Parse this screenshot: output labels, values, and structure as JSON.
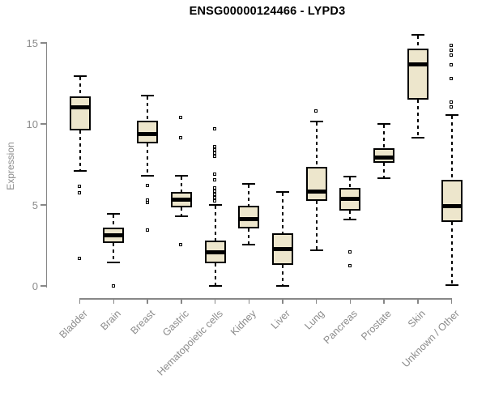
{
  "title": "ENSG00000124466 - LYPD3",
  "colors": {
    "background": "#ffffff",
    "box_fill": "#ede6cc",
    "box_border": "#000000",
    "median": "#000000",
    "whisker": "#000000",
    "outlier_fill": "#ffffff",
    "axis": "#878787",
    "tick_text": "#8c8c8c",
    "title_text": "#000000"
  },
  "chart_data": {
    "type": "boxplot",
    "title": "ENSG00000124466 - LYPD3",
    "xlabel": "",
    "ylabel": "Expression",
    "ylim": [
      0,
      15.6
    ],
    "yticks": [
      0,
      5,
      10,
      15
    ],
    "grid": false,
    "legend": "none",
    "outlier_marker": "open-square",
    "whisker_style": "dashed",
    "categories": [
      "Bladder",
      "Brain",
      "Breast",
      "Gastric",
      "Hematopoietic cells",
      "Kidney",
      "Liver",
      "Lung",
      "Pancreas",
      "Prostate",
      "Skin",
      "Unknown / Other"
    ],
    "boxes": [
      {
        "category": "Bladder",
        "whisker_low": 7.1,
        "q1": 9.6,
        "median": 11.05,
        "q3": 11.7,
        "whisker_high": 12.95,
        "outliers": [
          6.15,
          5.75,
          1.7
        ]
      },
      {
        "category": "Brain",
        "whisker_low": 1.45,
        "q1": 2.65,
        "median": 3.15,
        "q3": 3.6,
        "whisker_high": 4.45,
        "outliers": [
          0.0
        ]
      },
      {
        "category": "Breast",
        "whisker_low": 6.8,
        "q1": 8.8,
        "median": 9.4,
        "q3": 10.2,
        "whisker_high": 11.75,
        "outliers": [
          6.2,
          5.3,
          5.15,
          3.45
        ]
      },
      {
        "category": "Gastric",
        "whisker_low": 4.3,
        "q1": 4.85,
        "median": 5.35,
        "q3": 5.8,
        "whisker_high": 6.8,
        "outliers": [
          10.4,
          9.15,
          2.55
        ]
      },
      {
        "category": "Hematopoietic cells",
        "whisker_low": 0.0,
        "q1": 1.4,
        "median": 2.1,
        "q3": 2.8,
        "whisker_high": 5.0,
        "outliers": [
          9.7,
          8.6,
          8.4,
          8.2,
          8.0,
          6.9,
          6.55,
          6.05,
          5.85,
          5.65,
          5.45,
          5.25
        ]
      },
      {
        "category": "Kidney",
        "whisker_low": 2.55,
        "q1": 3.55,
        "median": 4.15,
        "q3": 4.95,
        "whisker_high": 6.3,
        "outliers": []
      },
      {
        "category": "Liver",
        "whisker_low": 0.0,
        "q1": 1.3,
        "median": 2.3,
        "q3": 3.25,
        "whisker_high": 5.8,
        "outliers": []
      },
      {
        "category": "Lung",
        "whisker_low": 2.2,
        "q1": 5.25,
        "median": 5.85,
        "q3": 7.35,
        "whisker_high": 10.15,
        "outliers": [
          10.8
        ]
      },
      {
        "category": "Pancreas",
        "whisker_low": 4.1,
        "q1": 4.65,
        "median": 5.4,
        "q3": 6.05,
        "whisker_high": 6.75,
        "outliers": [
          2.1,
          1.25
        ]
      },
      {
        "category": "Prostate",
        "whisker_low": 6.65,
        "q1": 7.6,
        "median": 7.95,
        "q3": 8.5,
        "whisker_high": 10.0,
        "outliers": []
      },
      {
        "category": "Skin",
        "whisker_low": 9.15,
        "q1": 11.5,
        "median": 13.7,
        "q3": 14.65,
        "whisker_high": 15.5,
        "outliers": []
      },
      {
        "category": "Unknown / Other",
        "whisker_low": 0.05,
        "q1": 3.95,
        "median": 4.95,
        "q3": 6.55,
        "whisker_high": 10.55,
        "outliers": [
          14.85,
          14.55,
          14.25,
          13.65,
          12.8,
          11.35,
          11.05
        ]
      }
    ]
  }
}
